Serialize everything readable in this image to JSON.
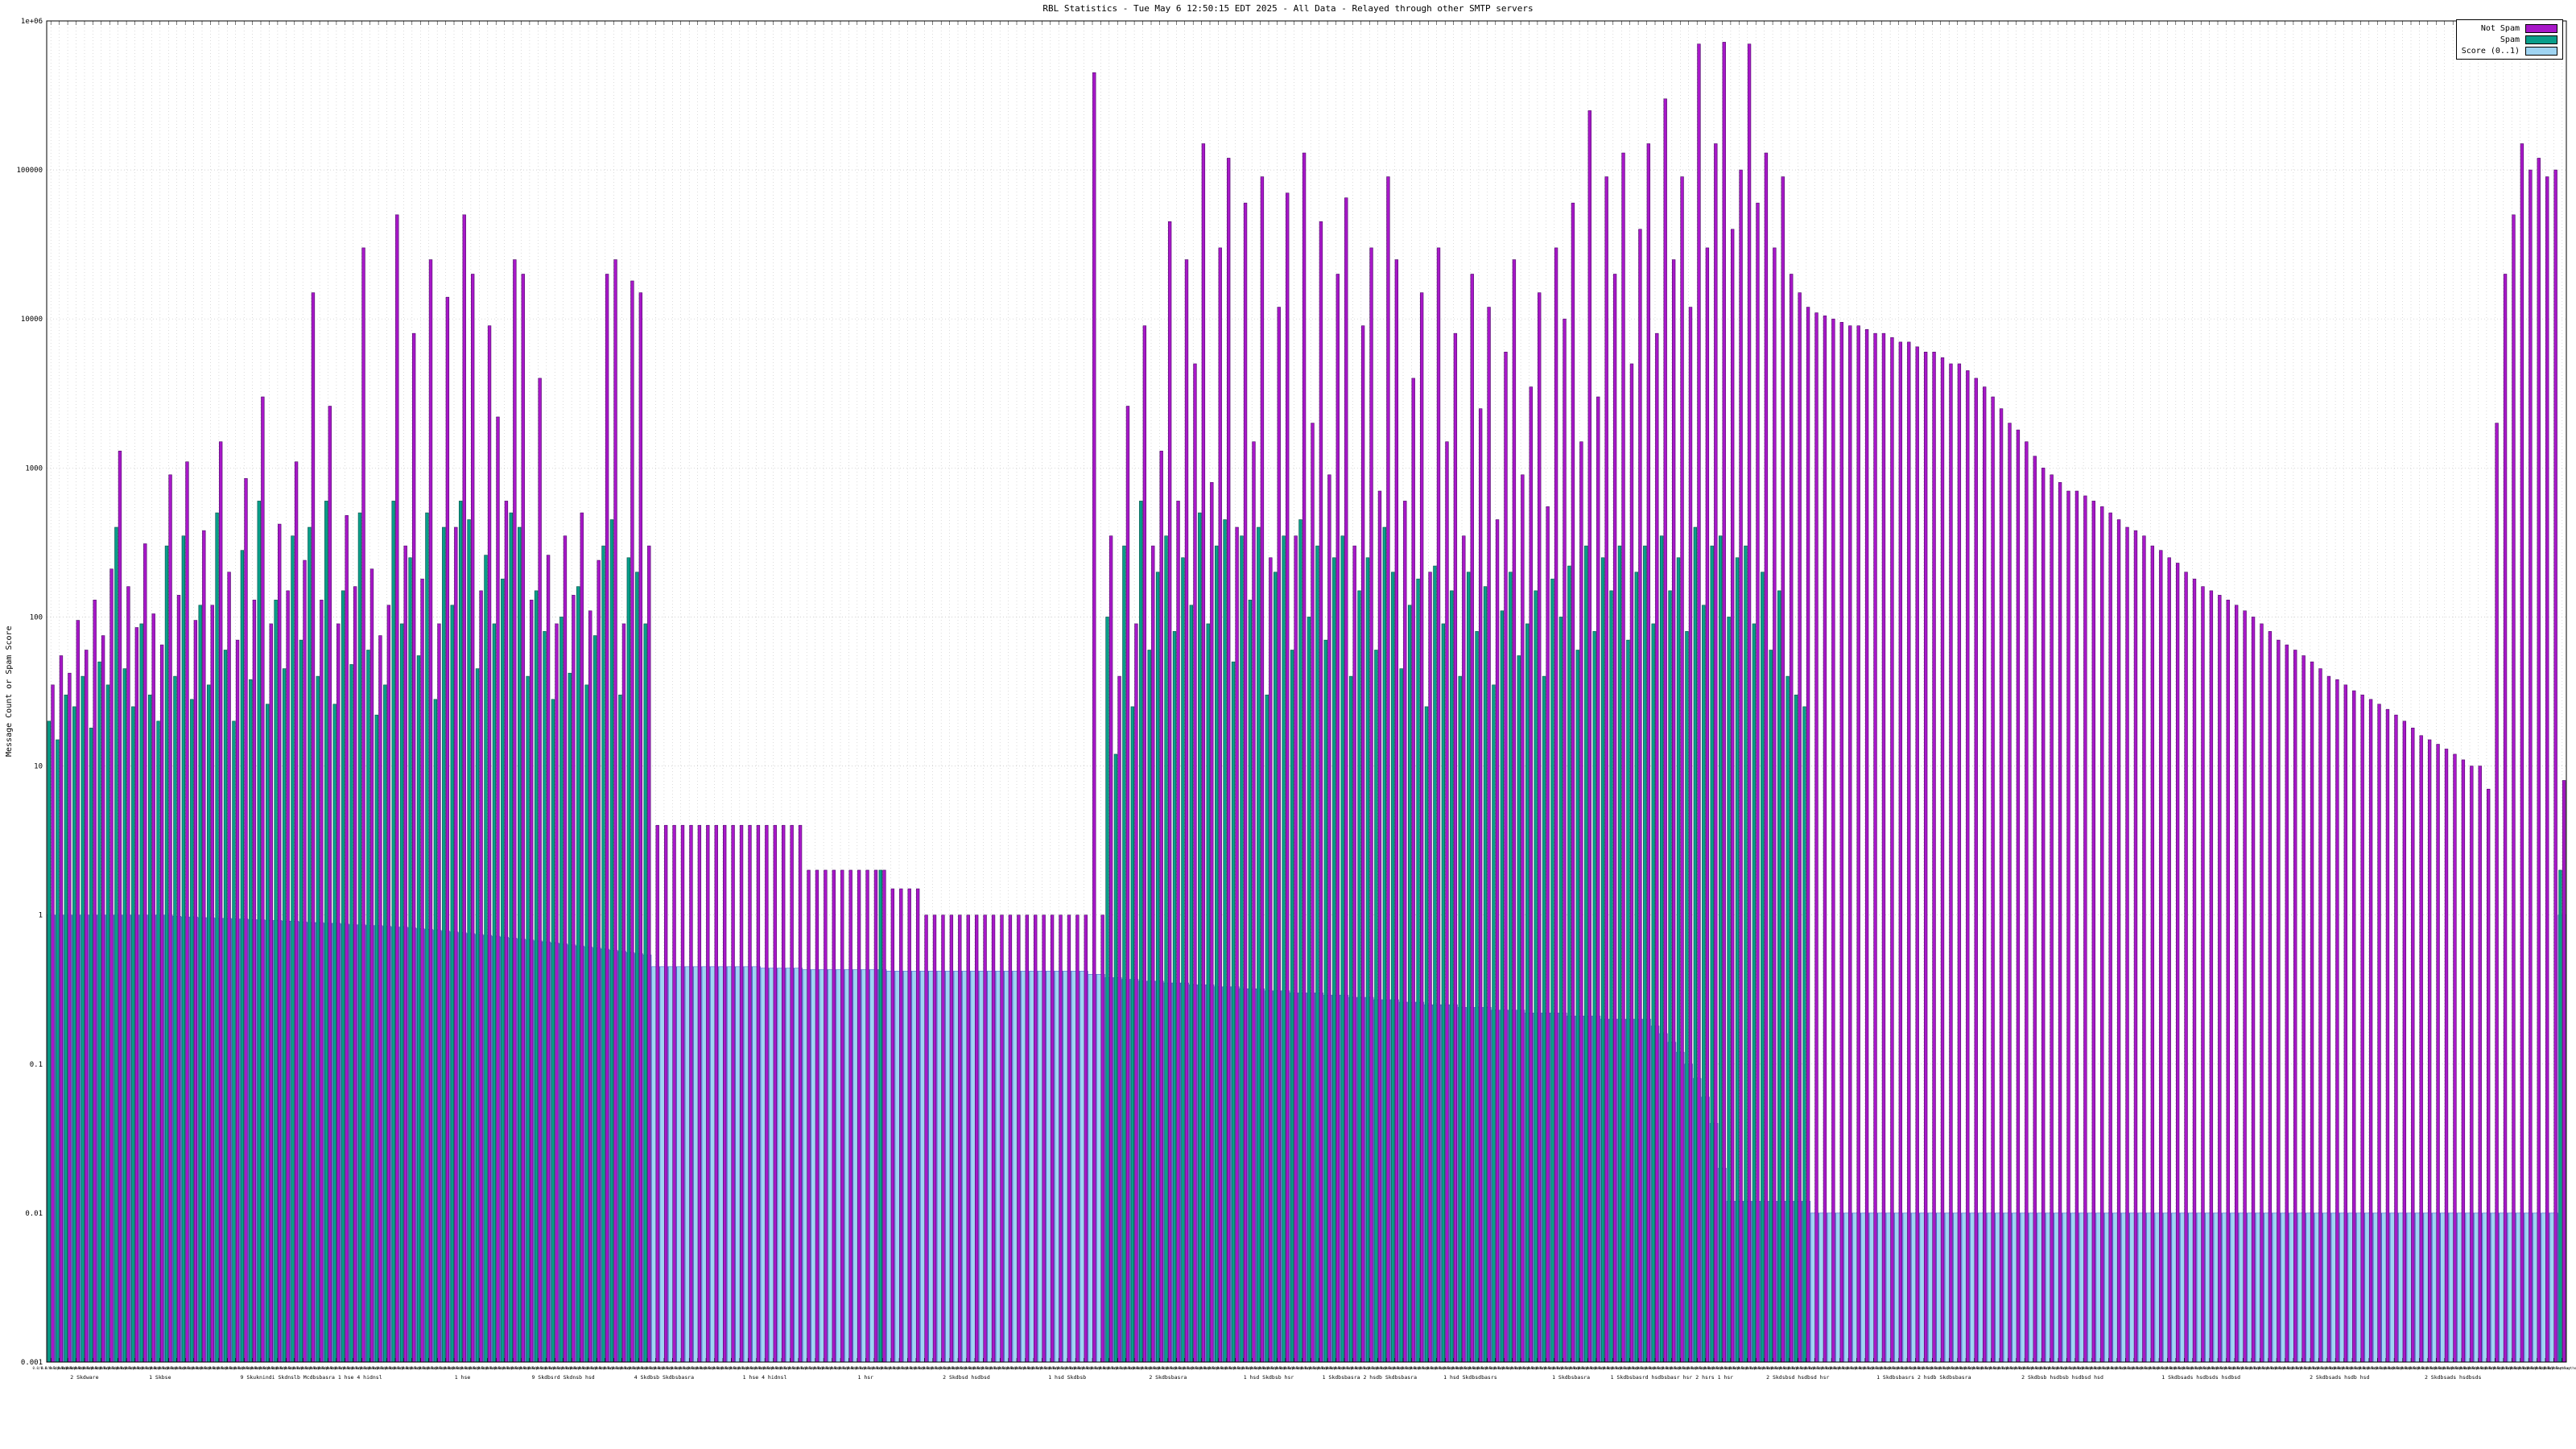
{
  "title": "RBL Statistics - Tue May  6 12:50:15 EDT 2025 - All Data - Relayed through other SMTP servers",
  "y_axis": {
    "label": "Message Count or Spam Score",
    "ticks": [
      "1e+06",
      "100000",
      "10000",
      "1000",
      "100",
      "10",
      "1",
      "0.1",
      "0.01",
      "0.001"
    ],
    "tick_values": [
      1000000,
      100000,
      10000,
      1000,
      100,
      10,
      1,
      0.1,
      0.01,
      0.001
    ]
  },
  "legend": [
    {
      "label": "Not Spam",
      "color": "#a818c8"
    },
    {
      "label": "Spam",
      "color": "#089e8a"
    },
    {
      "label": "Score (0..1)",
      "color": "#9fd4f2"
    }
  ],
  "chart_data": {
    "type": "bar",
    "log_scale": true,
    "ylim": [
      0.001,
      1000000
    ],
    "grid": true,
    "legend_position": "top-right",
    "title": "RBL Statistics - Tue May  6 12:50:15 EDT 2025 - All Data - Relayed through other SMTP servers",
    "ylabel": "Message Count or Spam Score",
    "x_tick_label_placeholder": "0.0/0.0 relay.host",
    "series": [
      {
        "name": "Not Spam",
        "color": "#a818c8",
        "border": "#4a0a66",
        "values": [
          35,
          55,
          42,
          95,
          60,
          130,
          75,
          210,
          1300,
          160,
          85,
          310,
          105,
          65,
          900,
          140,
          1100,
          95,
          380,
          120,
          1500,
          200,
          70,
          850,
          130,
          3000,
          90,
          420,
          150,
          1100,
          240,
          15000,
          130,
          2600,
          90,
          480,
          160,
          30000,
          210,
          75,
          120,
          50000,
          300,
          8000,
          180,
          25000,
          90,
          14000,
          400,
          50000,
          20000,
          150,
          9000,
          2200,
          600,
          25000,
          20000,
          130,
          4000,
          260,
          90,
          350,
          140,
          500,
          110,
          240,
          20000,
          25000,
          90,
          18000,
          15000,
          300,
          4,
          4,
          4,
          4,
          4,
          4,
          4,
          4,
          4,
          4,
          4,
          4,
          4,
          4,
          4,
          4,
          4,
          4,
          2,
          2,
          2,
          2,
          2,
          2,
          2,
          2,
          2,
          2,
          1.5,
          1.5,
          1.5,
          1.5,
          1,
          1,
          1,
          1,
          1,
          1,
          1,
          1,
          1,
          1,
          1,
          1,
          1,
          1,
          1,
          1,
          1,
          1,
          1,
          1,
          450000,
          1,
          350,
          40,
          2600,
          90,
          9000,
          300,
          1300,
          45000,
          600,
          25000,
          5000,
          150000,
          800,
          30000,
          120000,
          400,
          60000,
          1500,
          90000,
          250,
          12000,
          70000,
          350,
          130000,
          2000,
          45000,
          900,
          20000,
          65000,
          300,
          9000,
          30000,
          700,
          90000,
          25000,
          600,
          4000,
          15000,
          200,
          30000,
          1500,
          8000,
          350,
          20000,
          2500,
          12000,
          450,
          6000,
          25000,
          900,
          3500,
          15000,
          550,
          30000,
          10000,
          60000,
          1500,
          250000,
          3000,
          90000,
          20000,
          130000,
          5000,
          40000,
          150000,
          8000,
          300000,
          25000,
          90000,
          12000,
          700000,
          30000,
          150000,
          720000,
          40000,
          100000,
          700000,
          60000,
          130000,
          30000,
          90000,
          20000,
          15000,
          12000,
          11000,
          10500,
          10000,
          9500,
          9000,
          9000,
          8500,
          8000,
          8000,
          7500,
          7000,
          7000,
          6500,
          6000,
          6000,
          5500,
          5000,
          5000,
          4500,
          4000,
          3500,
          3000,
          2500,
          2000,
          1800,
          1500,
          1200,
          1000,
          900,
          800,
          700,
          700,
          650,
          600,
          550,
          500,
          450,
          400,
          380,
          350,
          300,
          280,
          250,
          230,
          200,
          180,
          160,
          150,
          140,
          130,
          120,
          110,
          100,
          90,
          80,
          70,
          65,
          60,
          55,
          50,
          45,
          40,
          38,
          35,
          32,
          30,
          28,
          26,
          24,
          22,
          20,
          18,
          16,
          15,
          14,
          13,
          12,
          11,
          10,
          10,
          7,
          2000,
          20000,
          50000,
          150000,
          100000,
          120000,
          90000,
          100000,
          8
        ]
      },
      {
        "name": "Spam",
        "color": "#089e8a",
        "border": "#044f46",
        "values": [
          20,
          15,
          30,
          25,
          40,
          18,
          50,
          35,
          400,
          45,
          25,
          90,
          30,
          20,
          300,
          40,
          350,
          28,
          120,
          35,
          500,
          60,
          20,
          280,
          38,
          600,
          26,
          130,
          45,
          350,
          70,
          400,
          40,
          600,
          26,
          150,
          48,
          500,
          60,
          22,
          35,
          600,
          90,
          250,
          55,
          500,
          28,
          400,
          120,
          600,
          450,
          45,
          260,
          90,
          180,
          500,
          400,
          40,
          150,
          80,
          28,
          100,
          42,
          160,
          35,
          75,
          300,
          450,
          30,
          250,
          200,
          90,
          0,
          0,
          0,
          0,
          0,
          0,
          0,
          0,
          0,
          0,
          0,
          0,
          0,
          0,
          0,
          0,
          0,
          0,
          0,
          0,
          0,
          0,
          0,
          0,
          0,
          0,
          0,
          2,
          0,
          0,
          0,
          0,
          0,
          0,
          0,
          0,
          0,
          0,
          0,
          0,
          0,
          0,
          0,
          0,
          0,
          0,
          0,
          0,
          0,
          0,
          0,
          0,
          0,
          0,
          100,
          12,
          300,
          25,
          600,
          60,
          200,
          350,
          80,
          250,
          120,
          500,
          90,
          300,
          450,
          50,
          350,
          130,
          400,
          30,
          200,
          350,
          60,
          450,
          100,
          300,
          70,
          250,
          350,
          40,
          150,
          250,
          60,
          400,
          200,
          45,
          120,
          180,
          25,
          220,
          90,
          150,
          40,
          200,
          80,
          160,
          35,
          110,
          200,
          55,
          90,
          150,
          40,
          180,
          100,
          220,
          60,
          300,
          80,
          250,
          150,
          300,
          70,
          200,
          300,
          90,
          350,
          150,
          250,
          80,
          400,
          120,
          300,
          350,
          100,
          250,
          300,
          90,
          200,
          60,
          150,
          40,
          30,
          25,
          0,
          0,
          0,
          0,
          0,
          0,
          0,
          0,
          0,
          0,
          0,
          0,
          0,
          0,
          0,
          0,
          0,
          0,
          0,
          0,
          0,
          0,
          0,
          0,
          0,
          0,
          0,
          0,
          0,
          0,
          0,
          0,
          0,
          0,
          0,
          0,
          0,
          0,
          0,
          0,
          0,
          0,
          0,
          0,
          0,
          0,
          0,
          0,
          0,
          0,
          0,
          0,
          0,
          0,
          0,
          0,
          0,
          0,
          0,
          0,
          0,
          0,
          0,
          0,
          0,
          0,
          0,
          0,
          0,
          0,
          0,
          0,
          0,
          0,
          0,
          0,
          0,
          0,
          0,
          0,
          0,
          0,
          0,
          0,
          0,
          0,
          0,
          0,
          0,
          2
        ]
      },
      {
        "name": "Score (0..1)",
        "color": "#9fd4f2",
        "border": "#4f63d2",
        "values": [
          1,
          1,
          1,
          1,
          1,
          1,
          1,
          1,
          1,
          1,
          1,
          1,
          1,
          1,
          1,
          0.98,
          0.97,
          0.97,
          0.96,
          0.96,
          0.95,
          0.95,
          0.94,
          0.94,
          0.93,
          0.93,
          0.92,
          0.92,
          0.91,
          0.91,
          0.9,
          0.89,
          0.89,
          0.88,
          0.88,
          0.87,
          0.86,
          0.86,
          0.85,
          0.85,
          0.84,
          0.83,
          0.83,
          0.82,
          0.81,
          0.8,
          0.79,
          0.78,
          0.77,
          0.76,
          0.75,
          0.74,
          0.73,
          0.72,
          0.71,
          0.7,
          0.69,
          0.68,
          0.67,
          0.66,
          0.65,
          0.64,
          0.63,
          0.62,
          0.61,
          0.6,
          0.59,
          0.58,
          0.57,
          0.56,
          0.55,
          0.54,
          0.45,
          0.45,
          0.45,
          0.45,
          0.45,
          0.45,
          0.45,
          0.45,
          0.45,
          0.45,
          0.45,
          0.45,
          0.45,
          0.44,
          0.44,
          0.44,
          0.44,
          0.44,
          0.43,
          0.43,
          0.43,
          0.43,
          0.43,
          0.43,
          0.43,
          0.43,
          0.43,
          0.43,
          0.42,
          0.42,
          0.42,
          0.42,
          0.42,
          0.42,
          0.42,
          0.42,
          0.42,
          0.42,
          0.42,
          0.42,
          0.42,
          0.42,
          0.42,
          0.42,
          0.42,
          0.42,
          0.42,
          0.42,
          0.42,
          0.42,
          0.42,
          0.42,
          0.4,
          0.4,
          0.38,
          0.38,
          0.37,
          0.37,
          0.36,
          0.36,
          0.36,
          0.35,
          0.35,
          0.35,
          0.34,
          0.34,
          0.34,
          0.33,
          0.33,
          0.33,
          0.32,
          0.32,
          0.32,
          0.31,
          0.31,
          0.31,
          0.3,
          0.3,
          0.3,
          0.3,
          0.29,
          0.29,
          0.29,
          0.28,
          0.28,
          0.28,
          0.27,
          0.27,
          0.27,
          0.26,
          0.26,
          0.26,
          0.25,
          0.25,
          0.25,
          0.25,
          0.24,
          0.24,
          0.24,
          0.24,
          0.23,
          0.23,
          0.23,
          0.23,
          0.22,
          0.22,
          0.22,
          0.22,
          0.22,
          0.21,
          0.21,
          0.21,
          0.21,
          0.2,
          0.2,
          0.2,
          0.2,
          0.2,
          0.2,
          0.18,
          0.16,
          0.14,
          0.12,
          0.1,
          0.08,
          0.06,
          0.04,
          0.02,
          0.012,
          0.012,
          0.012,
          0.012,
          0.012,
          0.012,
          0.012,
          0.012,
          0.012,
          0.012,
          0.01,
          0.01,
          0.01,
          0.01,
          0.01,
          0.01,
          0.01,
          0.01,
          0.01,
          0.01,
          0.01,
          0.01,
          0.01,
          0.01,
          0.01,
          0.01,
          0.01,
          0.01,
          0.01,
          0.01,
          0.01,
          0.01,
          0.01,
          0.01,
          0.01,
          0.01,
          0.01,
          0.01,
          0.01,
          0.01,
          0.01,
          0.01,
          0.01,
          0.01,
          0.01,
          0.01,
          0.01,
          0.01,
          0.01,
          0.01,
          0.01,
          0.01,
          0.01,
          0.01,
          0.01,
          0.01,
          0.01,
          0.01,
          0.01,
          0.01,
          0.01,
          0.01,
          0.01,
          0.01,
          0.01,
          0.01,
          0.01,
          0.01,
          0.01,
          0.01,
          0.01,
          0.01,
          0.01,
          0.01,
          0.01,
          0.01,
          0.01,
          0.01,
          0.01,
          0.01,
          0.01,
          0.01,
          0.01,
          0.01,
          0.01,
          0.01,
          0.01,
          0.01,
          0.01,
          0.01,
          0.01,
          0.01,
          0.01,
          0.01,
          0.01,
          0.01,
          0.01,
          0.01,
          0.01,
          1
        ]
      }
    ],
    "footer_labels": [
      {
        "pos": 0.015,
        "text": "2 Skdware"
      },
      {
        "pos": 0.045,
        "text": "1 Skbse"
      },
      {
        "pos": 0.105,
        "text": "9 Skuknindi Skdnslb Mcdbsbasra 1 hse 4 hidnsl"
      },
      {
        "pos": 0.165,
        "text": "1 hse"
      },
      {
        "pos": 0.205,
        "text": "9 Skdbsrd Skdnsb hsd"
      },
      {
        "pos": 0.245,
        "text": "4 Skdbsb Skdbsbasra"
      },
      {
        "pos": 0.285,
        "text": "1 hse 4 hidnsl"
      },
      {
        "pos": 0.325,
        "text": "1 hsr"
      },
      {
        "pos": 0.365,
        "text": "2 Skdbsd hsdbsd"
      },
      {
        "pos": 0.405,
        "text": "1 hsd Skdbsb"
      },
      {
        "pos": 0.445,
        "text": "2 Skdbsbasra"
      },
      {
        "pos": 0.485,
        "text": "1 hsd Skdbsb hsr"
      },
      {
        "pos": 0.525,
        "text": "1 Skdbsbasra 2 hsdb Skdbsbasra"
      },
      {
        "pos": 0.565,
        "text": "1 hsd Skdbsdbasrs"
      },
      {
        "pos": 0.605,
        "text": "1 Skdbsbasra"
      },
      {
        "pos": 0.645,
        "text": "1 Skdbsbasrd hsdbsbasr hsr 2 hsrs 1 hsr"
      },
      {
        "pos": 0.695,
        "text": "2 Skdsbsd hsdbsd hsr"
      },
      {
        "pos": 0.745,
        "text": "1 Skdbsbasrs 2 hsdb Skdbsbasra"
      },
      {
        "pos": 0.8,
        "text": "2 Skdbsb hsdbsb hsdbsd hsd"
      },
      {
        "pos": 0.855,
        "text": "1 Skdbsads hsdbsds hsdbsd"
      },
      {
        "pos": 0.91,
        "text": "2 Skdbsads hsdb hsd"
      },
      {
        "pos": 0.955,
        "text": "2 Skdbsads hsdbsds"
      }
    ]
  }
}
